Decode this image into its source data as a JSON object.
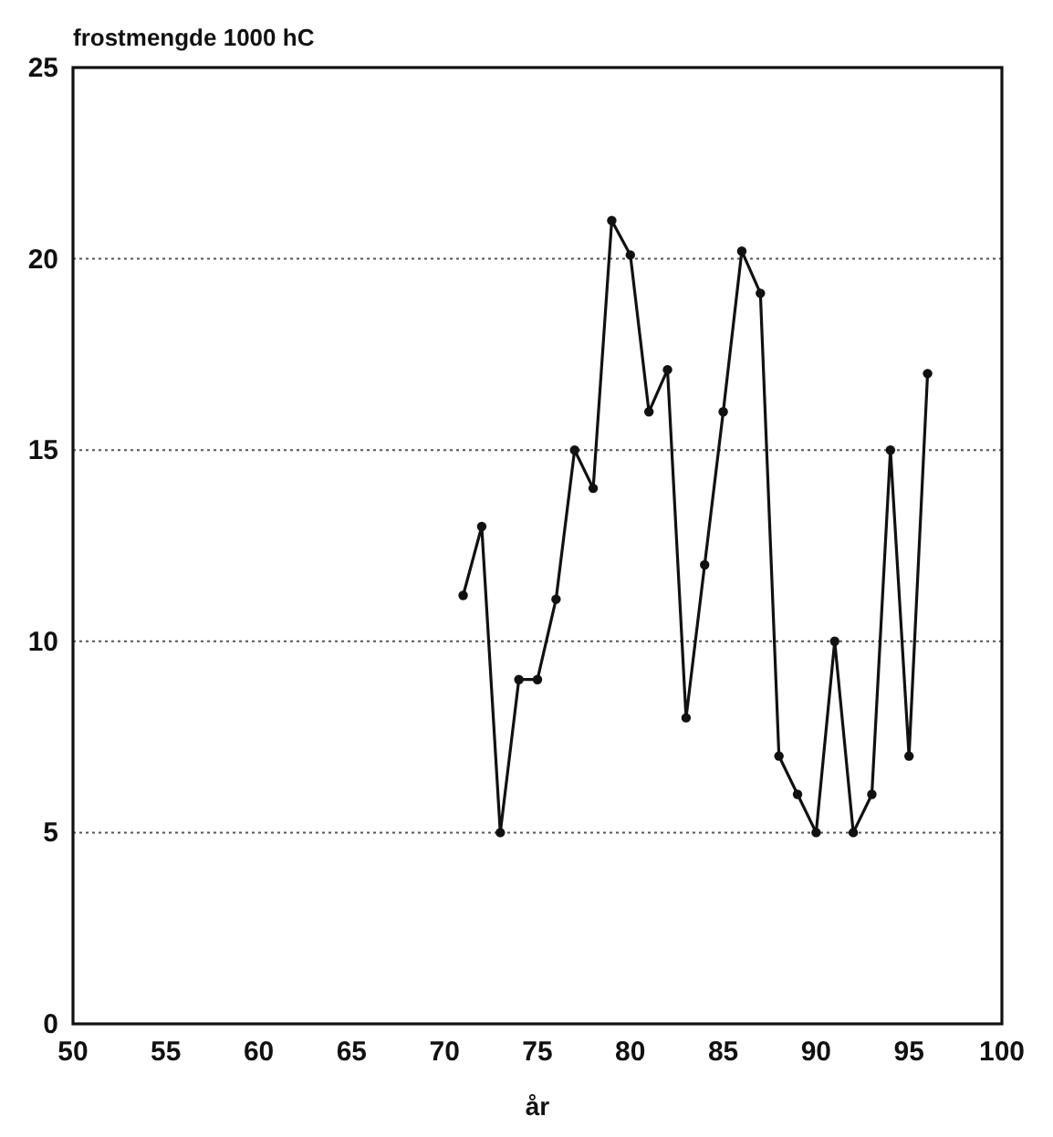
{
  "chart_data": {
    "type": "line",
    "ylabel": "frostmengde 1000 hC",
    "xlabel": "år",
    "x": [
      71,
      72,
      73,
      74,
      75,
      76,
      77,
      78,
      79,
      80,
      81,
      82,
      83,
      84,
      85,
      86,
      87,
      88,
      89,
      90,
      91,
      92,
      93,
      94,
      95,
      96
    ],
    "values": [
      11.2,
      13,
      5,
      9,
      9,
      11.1,
      15,
      14,
      21,
      20.1,
      16,
      17.1,
      8,
      12,
      16,
      20.2,
      19.1,
      7,
      6,
      5,
      10,
      5,
      6,
      15,
      7,
      17
    ],
    "color": "#111111",
    "marker": "circle",
    "line_style": "solid",
    "xlim": [
      50,
      100
    ],
    "xticks": [
      50,
      55,
      60,
      65,
      70,
      75,
      80,
      85,
      90,
      95,
      100
    ],
    "ylim": [
      0,
      25
    ],
    "yticks": [
      0,
      5,
      10,
      15,
      20,
      25
    ],
    "grid": "y"
  }
}
